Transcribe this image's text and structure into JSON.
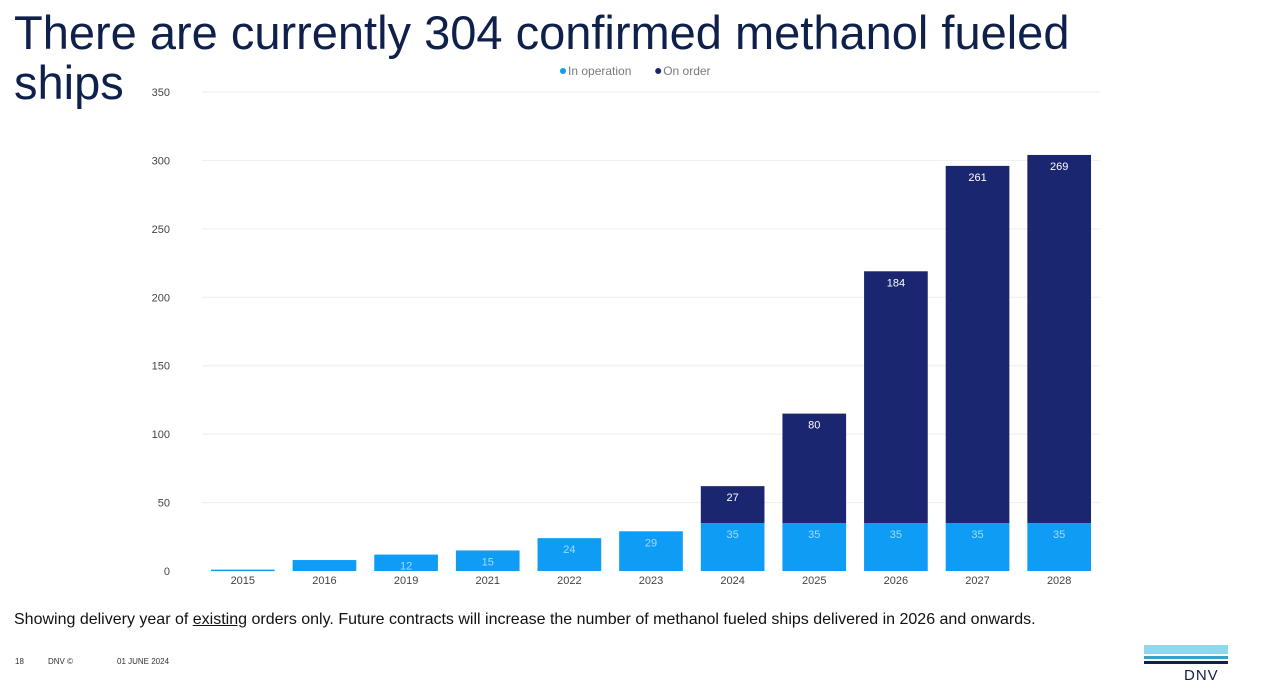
{
  "slide": {
    "title_line1": "There are currently 304 confirmed methanol fueled",
    "title_line2": "ships",
    "footnote_before": "Showing delivery year of ",
    "footnote_underlined": "existing",
    "footnote_after": " orders only. Future contracts will increase the number of methanol fueled ships delivered in 2026 and onwards.",
    "footer_page": "18",
    "footer_brand": "DNV ©",
    "footer_date": "01 JUNE 2024",
    "logo_text": "DNV"
  },
  "colors": {
    "title": "#0f204b",
    "in_operation": "#0f9cf5",
    "on_order": "#1b2670",
    "logo_light": "#8fd6ef",
    "logo_mid": "#3aa0c8",
    "logo_dark": "#0f204b"
  },
  "chart_data": {
    "type": "bar",
    "stacked": true,
    "categories": [
      "2015",
      "2016",
      "2019",
      "2021",
      "2022",
      "2023",
      "2024",
      "2025",
      "2026",
      "2027",
      "2028"
    ],
    "series": [
      {
        "name": "In operation",
        "values": [
          1,
          8,
          12,
          15,
          24,
          29,
          35,
          35,
          35,
          35,
          35
        ],
        "labels": [
          "",
          "",
          "12",
          "15",
          "24",
          "29",
          "35",
          "35",
          "35",
          "35",
          "35"
        ]
      },
      {
        "name": "On order",
        "values": [
          0,
          0,
          0,
          0,
          0,
          0,
          27,
          80,
          184,
          261,
          269
        ],
        "labels": [
          "",
          "",
          "",
          "",
          "",
          "",
          "27",
          "80",
          "184",
          "261",
          "269"
        ]
      }
    ],
    "ylim": [
      0,
      350
    ],
    "yticks": [
      0,
      50,
      100,
      150,
      200,
      250,
      300,
      350
    ],
    "grid": true,
    "legend_position": "top-center"
  }
}
